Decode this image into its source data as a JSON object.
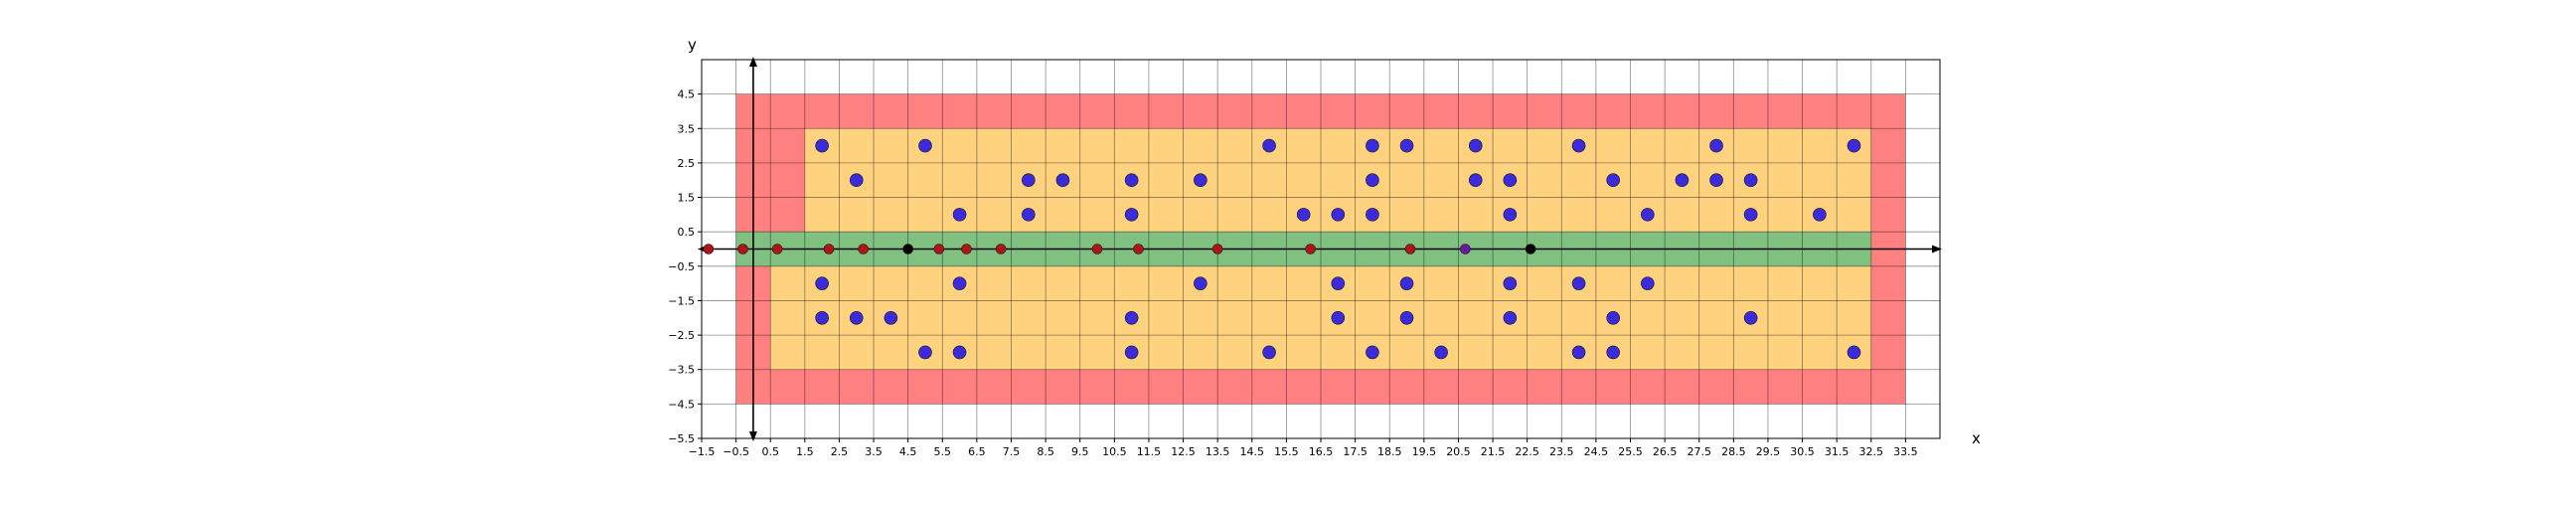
{
  "chart_data": {
    "type": "scatter",
    "title": "",
    "xlabel": "x",
    "ylabel": "y",
    "xlim": [
      -1.5,
      34.5
    ],
    "ylim": [
      -5.5,
      5.5
    ],
    "grid": true,
    "colors": {
      "outer_region": "#ff8080",
      "inner_region": "#ffd280",
      "band_region": "#80c080",
      "blue_point": "#3b2bdb",
      "red_point": "#b01515",
      "purple_point": "#6a1aa0",
      "black_point": "#000000"
    },
    "x_ticks": [
      "−1.5",
      "−0.5",
      "0.5",
      "1.5",
      "2.5",
      "3.5",
      "4.5",
      "5.5",
      "6.5",
      "7.5",
      "8.5",
      "9.5",
      "10.5",
      "11.5",
      "12.5",
      "13.5",
      "14.5",
      "15.5",
      "16.5",
      "17.5",
      "18.5",
      "19.5",
      "20.5",
      "21.5",
      "22.5",
      "23.5",
      "24.5",
      "25.5",
      "26.5",
      "27.5",
      "28.5",
      "29.5",
      "30.5",
      "31.5",
      "32.5",
      "33.5"
    ],
    "x_tick_values": [
      -1.5,
      -0.5,
      0.5,
      1.5,
      2.5,
      3.5,
      4.5,
      5.5,
      6.5,
      7.5,
      8.5,
      9.5,
      10.5,
      11.5,
      12.5,
      13.5,
      14.5,
      15.5,
      16.5,
      17.5,
      18.5,
      19.5,
      20.5,
      21.5,
      22.5,
      23.5,
      24.5,
      25.5,
      26.5,
      27.5,
      28.5,
      29.5,
      30.5,
      31.5,
      32.5,
      33.5
    ],
    "y_ticks": [
      "4.5",
      "3.5",
      "2.5",
      "1.5",
      "0.5",
      "−0.5",
      "−1.5",
      "−2.5",
      "−3.5",
      "−4.5",
      "−5.5"
    ],
    "y_tick_values": [
      4.5,
      3.5,
      2.5,
      1.5,
      0.5,
      -0.5,
      -1.5,
      -2.5,
      -3.5,
      -4.5,
      -5.5
    ],
    "regions": [
      {
        "name": "outer",
        "x": [
          -0.5,
          33.5
        ],
        "y": [
          -4.5,
          4.5
        ]
      },
      {
        "name": "inner",
        "x": [
          0.5,
          32.5
        ],
        "y": [
          -3.5,
          3.5
        ],
        "notch_x": [
          0.5,
          1.5
        ],
        "notch_y": [
          0.5,
          3.5
        ]
      },
      {
        "name": "band",
        "x": [
          -0.5,
          32.5
        ],
        "y": [
          -0.5,
          0.5
        ]
      }
    ],
    "series": [
      {
        "kind": "blue",
        "points": [
          [
            2,
            3
          ],
          [
            5,
            3
          ],
          [
            15,
            3
          ],
          [
            18,
            3
          ],
          [
            19,
            3
          ],
          [
            21,
            3
          ],
          [
            24,
            3
          ],
          [
            28,
            3
          ],
          [
            32,
            3
          ],
          [
            3,
            2
          ],
          [
            8,
            2
          ],
          [
            9,
            2
          ],
          [
            11,
            2
          ],
          [
            13,
            2
          ],
          [
            18,
            2
          ],
          [
            21,
            2
          ],
          [
            22,
            2
          ],
          [
            25,
            2
          ],
          [
            27,
            2
          ],
          [
            28,
            2
          ],
          [
            29,
            2
          ],
          [
            6,
            1
          ],
          [
            8,
            1
          ],
          [
            11,
            1
          ],
          [
            16,
            1
          ],
          [
            17,
            1
          ],
          [
            18,
            1
          ],
          [
            22,
            1
          ],
          [
            26,
            1
          ],
          [
            29,
            1
          ],
          [
            31,
            1
          ],
          [
            2,
            -1
          ],
          [
            6,
            -1
          ],
          [
            13,
            -1
          ],
          [
            17,
            -1
          ],
          [
            19,
            -1
          ],
          [
            22,
            -1
          ],
          [
            24,
            -1
          ],
          [
            26,
            -1
          ],
          [
            2,
            -2
          ],
          [
            3,
            -2
          ],
          [
            4,
            -2
          ],
          [
            11,
            -2
          ],
          [
            17,
            -2
          ],
          [
            19,
            -2
          ],
          [
            22,
            -2
          ],
          [
            25,
            -2
          ],
          [
            29,
            -2
          ],
          [
            5,
            -3
          ],
          [
            6,
            -3
          ],
          [
            11,
            -3
          ],
          [
            15,
            -3
          ],
          [
            18,
            -3
          ],
          [
            20,
            -3
          ],
          [
            24,
            -3
          ],
          [
            25,
            -3
          ],
          [
            32,
            -3
          ]
        ]
      },
      {
        "kind": "red",
        "points": [
          [
            -1.3,
            0
          ],
          [
            -0.3,
            0
          ],
          [
            0.7,
            0
          ],
          [
            2.2,
            0
          ],
          [
            3.2,
            0
          ],
          [
            5.4,
            0
          ],
          [
            6.2,
            0
          ],
          [
            7.2,
            0
          ],
          [
            10,
            0
          ],
          [
            11.2,
            0
          ],
          [
            13.5,
            0
          ],
          [
            16.2,
            0
          ],
          [
            19.1,
            0
          ]
        ]
      },
      {
        "kind": "purple",
        "points": [
          [
            20.7,
            0
          ]
        ]
      },
      {
        "kind": "black",
        "points": [
          [
            4.5,
            0
          ],
          [
            22.6,
            0
          ]
        ]
      }
    ]
  }
}
